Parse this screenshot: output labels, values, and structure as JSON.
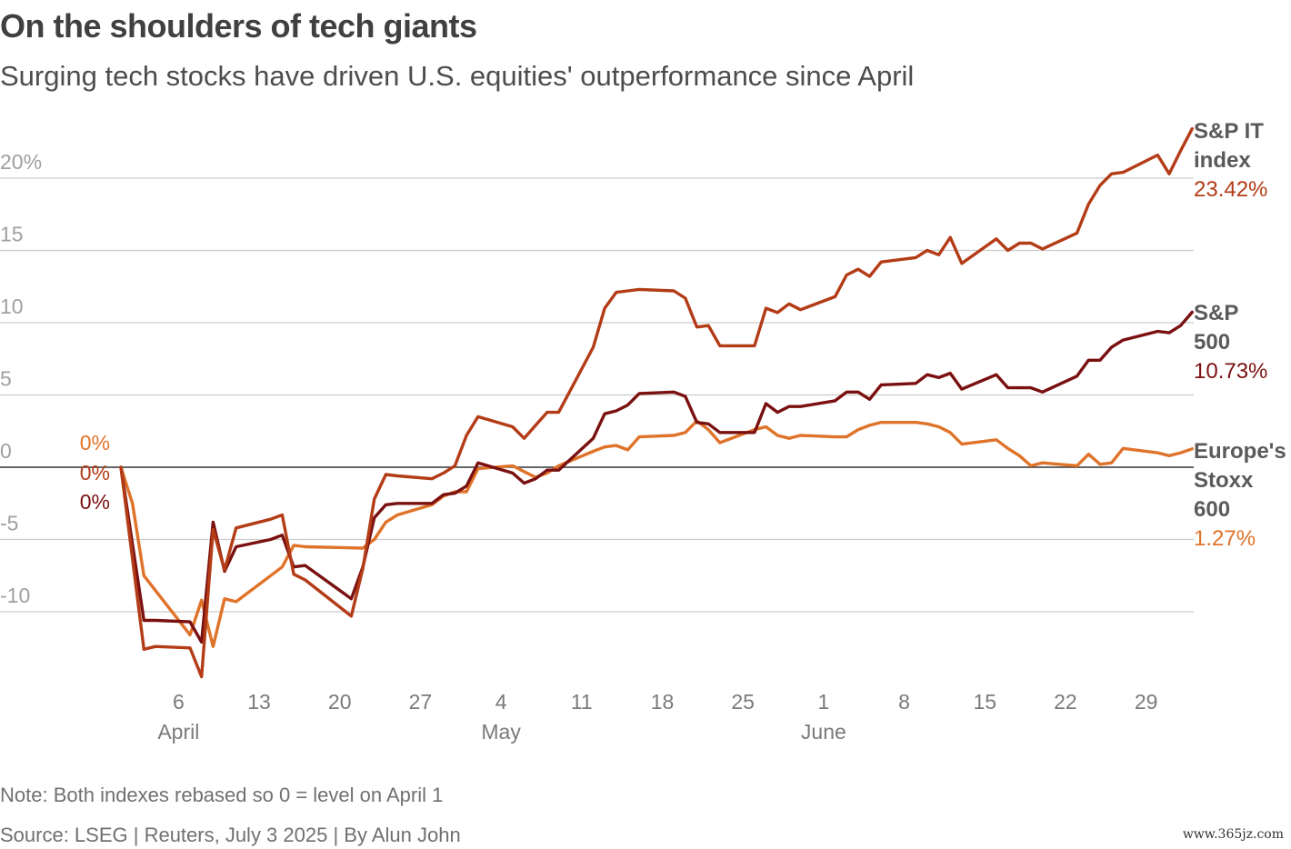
{
  "header": {
    "title": "On the shoulders of tech giants",
    "subtitle": "Surging tech stocks have driven U.S. equities' outperformance since April"
  },
  "footer": {
    "note": "Note: Both indexes rebased so 0 = level on April 1",
    "source": "Source: LSEG | Reuters, July 3 2025 | By Alun John",
    "watermark": "www.365jz.com"
  },
  "colors": {
    "sp_it": "#b33c17",
    "sp500": "#7a1010",
    "stoxx600": "#e0732a",
    "grid": "#cccccc",
    "zero_line": "#333333",
    "axis_text": "#a0a0a0",
    "month_text": "#7a7a7a"
  },
  "chart_data": {
    "type": "line",
    "title": "On the shoulders of tech giants",
    "subtitle": "Surging tech stocks have driven U.S. equities' outperformance since April",
    "ylim": [
      -15,
      23
    ],
    "yticks": [
      -10,
      -5,
      0,
      5,
      10,
      15,
      20
    ],
    "ytick_labels": [
      "-10",
      "-5",
      "0",
      "5",
      "10",
      "15",
      "20%"
    ],
    "xlim": [
      "2025-04-01",
      "2025-07-03"
    ],
    "xticks": [
      {
        "date": "2025-04-06",
        "label": "6"
      },
      {
        "date": "2025-04-13",
        "label": "13"
      },
      {
        "date": "2025-04-20",
        "label": "20"
      },
      {
        "date": "2025-04-27",
        "label": "27"
      },
      {
        "date": "2025-05-04",
        "label": "4"
      },
      {
        "date": "2025-05-11",
        "label": "11"
      },
      {
        "date": "2025-05-18",
        "label": "18"
      },
      {
        "date": "2025-05-25",
        "label": "25"
      },
      {
        "date": "2025-06-01",
        "label": "1"
      },
      {
        "date": "2025-06-08",
        "label": "8"
      },
      {
        "date": "2025-06-15",
        "label": "15"
      },
      {
        "date": "2025-06-22",
        "label": "22"
      },
      {
        "date": "2025-06-29",
        "label": "29"
      }
    ],
    "month_labels": [
      {
        "date": "2025-04-06",
        "label": "April"
      },
      {
        "date": "2025-05-04",
        "label": "May"
      },
      {
        "date": "2025-06-01",
        "label": "June"
      }
    ],
    "grid": true,
    "legend": "direct labels at right end of lines",
    "start_labels": [
      "0%",
      "0%",
      "0%"
    ],
    "series": [
      {
        "name_lines": [
          "S&P IT",
          "index"
        ],
        "end_label": "23.42%",
        "color": "#b33c17",
        "points": [
          [
            "2025-04-01",
            0
          ],
          [
            "2025-04-03",
            -12.6
          ],
          [
            "2025-04-04",
            -12.4
          ],
          [
            "2025-04-07",
            -12.5
          ],
          [
            "2025-04-08",
            -14.5
          ],
          [
            "2025-04-09",
            -4.3
          ],
          [
            "2025-04-10",
            -7.1
          ],
          [
            "2025-04-11",
            -4.2
          ],
          [
            "2025-04-14",
            -3.6
          ],
          [
            "2025-04-15",
            -3.3
          ],
          [
            "2025-04-16",
            -7.4
          ],
          [
            "2025-04-17",
            -7.8
          ],
          [
            "2025-04-21",
            -10.3
          ],
          [
            "2025-04-22",
            -7.0
          ],
          [
            "2025-04-23",
            -2.2
          ],
          [
            "2025-04-24",
            -0.5
          ],
          [
            "2025-04-25",
            -0.6
          ],
          [
            "2025-04-28",
            -0.8
          ],
          [
            "2025-04-29",
            -0.4
          ],
          [
            "2025-04-30",
            0.1
          ],
          [
            "2025-05-01",
            2.2
          ],
          [
            "2025-05-02",
            3.5
          ],
          [
            "2025-05-05",
            2.8
          ],
          [
            "2025-05-06",
            2.0
          ],
          [
            "2025-05-07",
            2.9
          ],
          [
            "2025-05-08",
            3.8
          ],
          [
            "2025-05-09",
            3.8
          ],
          [
            "2025-05-12",
            8.3
          ],
          [
            "2025-05-13",
            11.0
          ],
          [
            "2025-05-14",
            12.1
          ],
          [
            "2025-05-15",
            12.2
          ],
          [
            "2025-05-16",
            12.3
          ],
          [
            "2025-05-19",
            12.2
          ],
          [
            "2025-05-20",
            11.7
          ],
          [
            "2025-05-21",
            9.7
          ],
          [
            "2025-05-22",
            9.8
          ],
          [
            "2025-05-23",
            8.4
          ],
          [
            "2025-05-26",
            8.4
          ],
          [
            "2025-05-27",
            11.0
          ],
          [
            "2025-05-28",
            10.7
          ],
          [
            "2025-05-29",
            11.3
          ],
          [
            "2025-05-30",
            10.9
          ],
          [
            "2025-06-02",
            11.8
          ],
          [
            "2025-06-03",
            13.3
          ],
          [
            "2025-06-04",
            13.7
          ],
          [
            "2025-06-05",
            13.2
          ],
          [
            "2025-06-06",
            14.2
          ],
          [
            "2025-06-09",
            14.5
          ],
          [
            "2025-06-10",
            15.0
          ],
          [
            "2025-06-11",
            14.7
          ],
          [
            "2025-06-12",
            15.9
          ],
          [
            "2025-06-13",
            14.1
          ],
          [
            "2025-06-16",
            15.8
          ],
          [
            "2025-06-17",
            15.0
          ],
          [
            "2025-06-18",
            15.5
          ],
          [
            "2025-06-19",
            15.5
          ],
          [
            "2025-06-20",
            15.1
          ],
          [
            "2025-06-23",
            16.2
          ],
          [
            "2025-06-24",
            18.2
          ],
          [
            "2025-06-25",
            19.5
          ],
          [
            "2025-06-26",
            20.3
          ],
          [
            "2025-06-27",
            20.4
          ],
          [
            "2025-06-30",
            21.6
          ],
          [
            "2025-07-01",
            20.3
          ],
          [
            "2025-07-02",
            21.9
          ],
          [
            "2025-07-03",
            23.42
          ]
        ]
      },
      {
        "name_lines": [
          "S&P",
          "500"
        ],
        "end_label": "10.73%",
        "color": "#7a1010",
        "points": [
          [
            "2025-04-01",
            0
          ],
          [
            "2025-04-03",
            -10.6
          ],
          [
            "2025-04-04",
            -10.6
          ],
          [
            "2025-04-07",
            -10.7
          ],
          [
            "2025-04-08",
            -12.1
          ],
          [
            "2025-04-09",
            -3.8
          ],
          [
            "2025-04-10",
            -7.2
          ],
          [
            "2025-04-11",
            -5.5
          ],
          [
            "2025-04-14",
            -5.0
          ],
          [
            "2025-04-15",
            -4.7
          ],
          [
            "2025-04-16",
            -6.9
          ],
          [
            "2025-04-17",
            -6.8
          ],
          [
            "2025-04-21",
            -9.1
          ],
          [
            "2025-04-22",
            -6.9
          ],
          [
            "2025-04-23",
            -3.5
          ],
          [
            "2025-04-24",
            -2.6
          ],
          [
            "2025-04-25",
            -2.5
          ],
          [
            "2025-04-28",
            -2.5
          ],
          [
            "2025-04-29",
            -1.9
          ],
          [
            "2025-04-30",
            -1.8
          ],
          [
            "2025-05-01",
            -1.3
          ],
          [
            "2025-05-02",
            0.3
          ],
          [
            "2025-05-05",
            -0.4
          ],
          [
            "2025-05-06",
            -1.1
          ],
          [
            "2025-05-07",
            -0.8
          ],
          [
            "2025-05-08",
            -0.2
          ],
          [
            "2025-05-09",
            -0.2
          ],
          [
            "2025-05-12",
            2.0
          ],
          [
            "2025-05-13",
            3.7
          ],
          [
            "2025-05-14",
            3.9
          ],
          [
            "2025-05-15",
            4.3
          ],
          [
            "2025-05-16",
            5.1
          ],
          [
            "2025-05-19",
            5.2
          ],
          [
            "2025-05-20",
            4.9
          ],
          [
            "2025-05-21",
            3.1
          ],
          [
            "2025-05-22",
            3.0
          ],
          [
            "2025-05-23",
            2.4
          ],
          [
            "2025-05-26",
            2.4
          ],
          [
            "2025-05-27",
            4.4
          ],
          [
            "2025-05-28",
            3.8
          ],
          [
            "2025-05-29",
            4.2
          ],
          [
            "2025-05-30",
            4.2
          ],
          [
            "2025-06-02",
            4.6
          ],
          [
            "2025-06-03",
            5.2
          ],
          [
            "2025-06-04",
            5.2
          ],
          [
            "2025-06-05",
            4.7
          ],
          [
            "2025-06-06",
            5.7
          ],
          [
            "2025-06-09",
            5.8
          ],
          [
            "2025-06-10",
            6.4
          ],
          [
            "2025-06-11",
            6.2
          ],
          [
            "2025-06-12",
            6.5
          ],
          [
            "2025-06-13",
            5.4
          ],
          [
            "2025-06-16",
            6.4
          ],
          [
            "2025-06-17",
            5.5
          ],
          [
            "2025-06-18",
            5.5
          ],
          [
            "2025-06-19",
            5.5
          ],
          [
            "2025-06-20",
            5.2
          ],
          [
            "2025-06-23",
            6.3
          ],
          [
            "2025-06-24",
            7.4
          ],
          [
            "2025-06-25",
            7.4
          ],
          [
            "2025-06-26",
            8.3
          ],
          [
            "2025-06-27",
            8.8
          ],
          [
            "2025-06-30",
            9.4
          ],
          [
            "2025-07-01",
            9.3
          ],
          [
            "2025-07-02",
            9.8
          ],
          [
            "2025-07-03",
            10.73
          ]
        ]
      },
      {
        "name_lines": [
          "Europe's",
          "Stoxx",
          "600"
        ],
        "end_label": "1.27%",
        "color": "#e0732a",
        "points": [
          [
            "2025-04-01",
            0
          ],
          [
            "2025-04-02",
            -2.5
          ],
          [
            "2025-04-03",
            -7.5
          ],
          [
            "2025-04-07",
            -11.6
          ],
          [
            "2025-04-08",
            -9.2
          ],
          [
            "2025-04-09",
            -12.4
          ],
          [
            "2025-04-10",
            -9.1
          ],
          [
            "2025-04-11",
            -9.3
          ],
          [
            "2025-04-14",
            -7.5
          ],
          [
            "2025-04-15",
            -6.9
          ],
          [
            "2025-04-16",
            -5.4
          ],
          [
            "2025-04-17",
            -5.5
          ],
          [
            "2025-04-22",
            -5.6
          ],
          [
            "2025-04-23",
            -5.0
          ],
          [
            "2025-04-24",
            -3.8
          ],
          [
            "2025-04-25",
            -3.3
          ],
          [
            "2025-04-28",
            -2.6
          ],
          [
            "2025-04-29",
            -2.0
          ],
          [
            "2025-04-30",
            -1.7
          ],
          [
            "2025-05-01",
            -1.7
          ],
          [
            "2025-05-02",
            -0.1
          ],
          [
            "2025-05-05",
            0.1
          ],
          [
            "2025-05-06",
            -0.3
          ],
          [
            "2025-05-07",
            -0.7
          ],
          [
            "2025-05-08",
            -0.4
          ],
          [
            "2025-05-09",
            0.1
          ],
          [
            "2025-05-12",
            1.1
          ],
          [
            "2025-05-13",
            1.4
          ],
          [
            "2025-05-14",
            1.5
          ],
          [
            "2025-05-15",
            1.2
          ],
          [
            "2025-05-16",
            2.1
          ],
          [
            "2025-05-19",
            2.2
          ],
          [
            "2025-05-20",
            2.4
          ],
          [
            "2025-05-21",
            3.2
          ],
          [
            "2025-05-22",
            2.6
          ],
          [
            "2025-05-23",
            1.7
          ],
          [
            "2025-05-26",
            2.6
          ],
          [
            "2025-05-27",
            2.8
          ],
          [
            "2025-05-28",
            2.2
          ],
          [
            "2025-05-29",
            2.0
          ],
          [
            "2025-05-30",
            2.2
          ],
          [
            "2025-06-02",
            2.1
          ],
          [
            "2025-06-03",
            2.1
          ],
          [
            "2025-06-04",
            2.6
          ],
          [
            "2025-06-05",
            2.9
          ],
          [
            "2025-06-06",
            3.1
          ],
          [
            "2025-06-09",
            3.1
          ],
          [
            "2025-06-10",
            3.0
          ],
          [
            "2025-06-11",
            2.8
          ],
          [
            "2025-06-12",
            2.4
          ],
          [
            "2025-06-13",
            1.6
          ],
          [
            "2025-06-16",
            1.9
          ],
          [
            "2025-06-17",
            1.3
          ],
          [
            "2025-06-18",
            0.8
          ],
          [
            "2025-06-19",
            0.1
          ],
          [
            "2025-06-20",
            0.3
          ],
          [
            "2025-06-23",
            0.1
          ],
          [
            "2025-06-24",
            0.9
          ],
          [
            "2025-06-25",
            0.2
          ],
          [
            "2025-06-26",
            0.3
          ],
          [
            "2025-06-27",
            1.3
          ],
          [
            "2025-06-30",
            1.0
          ],
          [
            "2025-07-01",
            0.8
          ],
          [
            "2025-07-02",
            1.0
          ],
          [
            "2025-07-03",
            1.27
          ]
        ]
      }
    ],
    "note": "Note: Both indexes rebased so 0 = level on April 1",
    "source": "Source: LSEG | Reuters, July 3 2025 | By Alun John"
  }
}
